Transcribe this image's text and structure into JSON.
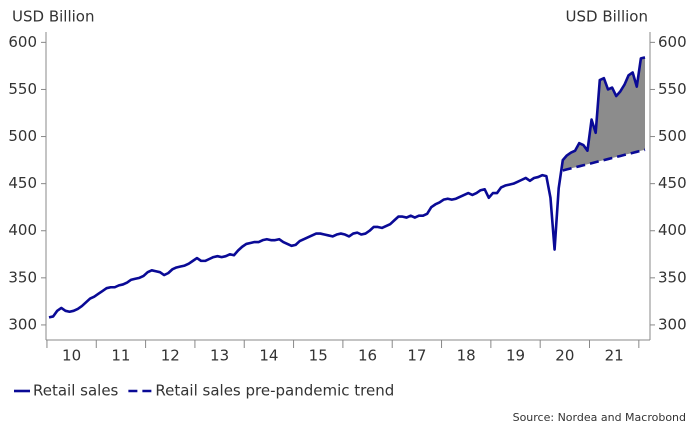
{
  "chart_data": {
    "type": "line",
    "y_label": "USD Billion",
    "y2_label": "USD Billion",
    "source": "Source: Nordea and Macrobond",
    "categories": [
      null,
      null,
      null,
      null,
      null,
      null,
      "10",
      null,
      null,
      null,
      null,
      null,
      null,
      null,
      null,
      null,
      null,
      null,
      "11",
      null,
      null,
      null,
      null,
      null,
      null,
      null,
      null,
      null,
      null,
      null,
      "12",
      null,
      null,
      null,
      null,
      null,
      null,
      null,
      null,
      null,
      null,
      null,
      "13",
      null,
      null,
      null,
      null,
      null,
      null,
      null,
      null,
      null,
      null,
      null,
      "14",
      null,
      null,
      null,
      null,
      null,
      null,
      null,
      null,
      null,
      null,
      null,
      "15",
      null,
      null,
      null,
      null,
      null,
      null,
      null,
      null,
      null,
      null,
      null,
      "16",
      null,
      null,
      null,
      null,
      null,
      null,
      null,
      null,
      null,
      null,
      null,
      "17",
      null,
      null,
      null,
      null,
      null,
      null,
      null,
      null,
      null,
      null,
      null,
      "18",
      null,
      null,
      null,
      null,
      null,
      null,
      null,
      null,
      null,
      null,
      null,
      "19",
      null,
      null,
      null,
      null,
      null,
      null,
      null,
      null,
      null,
      null,
      null,
      "20",
      null,
      null,
      null,
      null,
      null,
      null,
      null,
      null,
      null,
      null,
      null,
      "21",
      null,
      null,
      null,
      null,
      null,
      null,
      null
    ],
    "series": [
      {
        "name": "Retail sales",
        "color": "#0a0a96",
        "dash": false,
        "values": [
          308,
          309,
          315,
          318,
          315,
          314,
          315,
          317,
          320,
          324,
          328,
          330,
          333,
          336,
          339,
          340,
          340,
          342,
          343,
          345,
          348,
          349,
          350,
          352,
          356,
          358,
          357,
          356,
          353,
          355,
          359,
          361,
          362,
          363,
          365,
          368,
          371,
          368,
          368,
          370,
          372,
          373,
          372,
          373,
          375,
          374,
          379,
          383,
          386,
          387,
          388,
          388,
          390,
          391,
          390,
          390,
          391,
          388,
          386,
          384,
          385,
          389,
          391,
          393,
          395,
          397,
          397,
          396,
          395,
          394,
          396,
          397,
          396,
          394,
          397,
          398,
          396,
          397,
          400,
          404,
          404,
          403,
          405,
          407,
          411,
          415,
          415,
          414,
          416,
          414,
          416,
          416,
          418,
          425,
          428,
          430,
          433,
          434,
          433,
          434,
          436,
          438,
          440,
          438,
          440,
          443,
          444,
          435,
          440,
          440,
          446,
          448,
          449,
          450,
          452,
          454,
          456,
          453,
          456,
          457,
          459,
          458,
          435,
          380,
          445,
          475,
          480,
          483,
          485,
          493,
          491,
          485,
          518,
          504,
          560,
          562,
          550,
          552,
          543,
          548,
          555,
          565,
          568,
          553,
          583,
          584
        ]
      },
      {
        "name": "Retail sales pre-pandemic trend",
        "color": "#0a0a96",
        "dash": true,
        "values": [
          null,
          null,
          null,
          null,
          null,
          null,
          null,
          null,
          null,
          null,
          null,
          null,
          null,
          null,
          null,
          null,
          null,
          null,
          null,
          null,
          null,
          null,
          null,
          null,
          null,
          null,
          null,
          null,
          null,
          null,
          null,
          null,
          null,
          null,
          null,
          null,
          null,
          null,
          null,
          null,
          null,
          null,
          null,
          null,
          null,
          null,
          null,
          null,
          null,
          null,
          null,
          null,
          null,
          null,
          null,
          null,
          null,
          null,
          null,
          null,
          null,
          null,
          null,
          null,
          null,
          null,
          null,
          null,
          null,
          null,
          null,
          null,
          null,
          null,
          null,
          null,
          null,
          null,
          null,
          null,
          null,
          null,
          null,
          null,
          null,
          null,
          null,
          null,
          null,
          null,
          null,
          null,
          null,
          null,
          null,
          null,
          null,
          null,
          null,
          null,
          null,
          null,
          null,
          null,
          null,
          null,
          null,
          null,
          null,
          null,
          null,
          null,
          null,
          null,
          null,
          null,
          null,
          null,
          null,
          null,
          null,
          null,
          null,
          null,
          null,
          464,
          465.1,
          466.2,
          467.3,
          468.4,
          469.5,
          470.6,
          471.7,
          472.8,
          473.9,
          475,
          476.1,
          477.2,
          478.3,
          479.4,
          480.5,
          481.6,
          482.7,
          483.8,
          484.9,
          486
        ]
      }
    ],
    "gap_fill_color": "#8c8c8c",
    "ylim": [
      284,
      611
    ],
    "yticks": [
      300,
      350,
      400,
      450,
      500,
      550,
      600
    ],
    "y2lim": [
      284,
      611
    ],
    "y2ticks": [
      300,
      350,
      400,
      450,
      500,
      550,
      600
    ],
    "legend": "bottom-left"
  }
}
